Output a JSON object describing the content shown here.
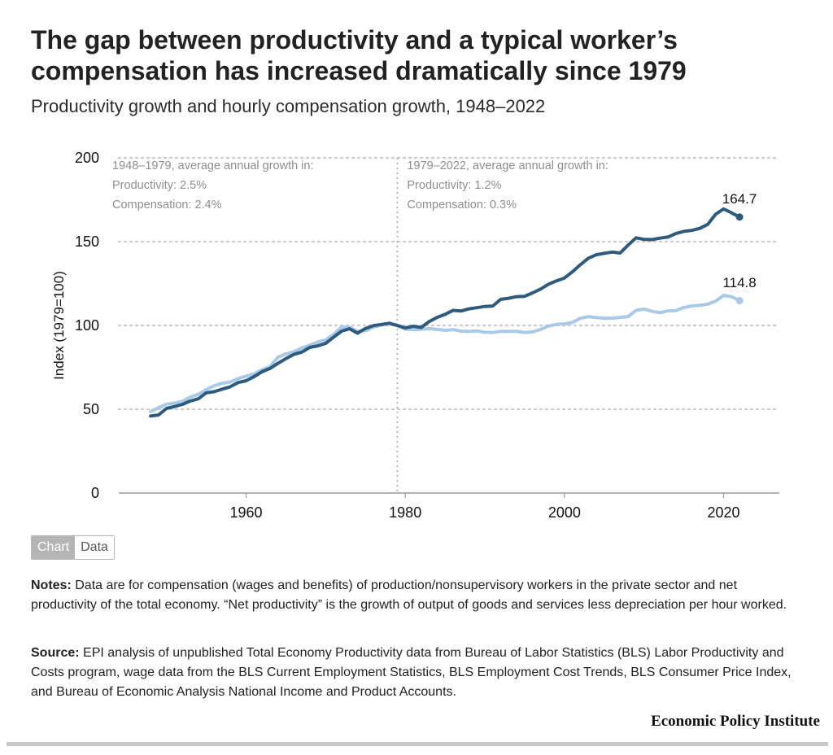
{
  "header": {
    "title": "The gap between productivity and a typical worker’s compensation has increased dramatically since 1979",
    "subtitle": "Productivity growth and hourly compensation growth, 1948–2022"
  },
  "chart_data": {
    "type": "line",
    "xlim": [
      1944,
      2027
    ],
    "ylim": [
      0,
      200
    ],
    "xticks": [
      1960,
      1980,
      2000,
      2020
    ],
    "yticks": [
      0,
      50,
      100,
      150,
      200
    ],
    "ylabel": "Index (1979=100)",
    "grid": "horizontal dotted",
    "divider_x": 1979,
    "annotations": [
      {
        "lines": [
          "1948–1979, average annual growth in:",
          "Productivity: 2.5%",
          "Compensation: 2.4%"
        ],
        "anchor_x": 1948
      },
      {
        "lines": [
          "1979–2022, average annual growth in:",
          "Productivity: 1.2%",
          "Compensation: 0.3%"
        ],
        "anchor_x": 1979
      }
    ],
    "series": [
      {
        "key": "productivity",
        "color": "#2e5a7d",
        "end_label": "164.7",
        "x": [
          1948,
          1949,
          1950,
          1951,
          1952,
          1953,
          1954,
          1955,
          1956,
          1957,
          1958,
          1959,
          1960,
          1961,
          1962,
          1963,
          1964,
          1965,
          1966,
          1967,
          1968,
          1969,
          1970,
          1971,
          1972,
          1973,
          1974,
          1975,
          1976,
          1977,
          1978,
          1979,
          1980,
          1981,
          1982,
          1983,
          1984,
          1985,
          1986,
          1987,
          1988,
          1989,
          1990,
          1991,
          1992,
          1993,
          1994,
          1995,
          1996,
          1997,
          1998,
          1999,
          2000,
          2001,
          2002,
          2003,
          2004,
          2005,
          2006,
          2007,
          2008,
          2009,
          2010,
          2011,
          2012,
          2013,
          2014,
          2015,
          2016,
          2017,
          2018,
          2019,
          2020,
          2021,
          2022
        ],
        "y": [
          45.9,
          46.6,
          50.5,
          51.6,
          52.9,
          54.9,
          56.2,
          59.8,
          60.5,
          62.0,
          63.4,
          65.9,
          67.0,
          69.4,
          72.4,
          74.3,
          77.4,
          80.2,
          82.7,
          84.1,
          86.9,
          87.8,
          89.3,
          93.0,
          96.6,
          98.0,
          95.4,
          98.2,
          99.9,
          100.6,
          101.3,
          100.0,
          98.5,
          99.5,
          98.8,
          102.3,
          104.8,
          106.6,
          109.0,
          108.6,
          109.9,
          110.6,
          111.3,
          111.6,
          115.6,
          116.2,
          117.2,
          117.4,
          119.4,
          121.7,
          124.6,
          126.6,
          128.3,
          132.0,
          136.2,
          140.1,
          142.2,
          143.0,
          143.8,
          143.2,
          147.9,
          152.3,
          151.3,
          151.2,
          152.1,
          152.7,
          154.8,
          156.1,
          156.7,
          157.9,
          160.3,
          166.3,
          169.5,
          167.2,
          164.7
        ]
      },
      {
        "key": "compensation",
        "color": "#a9c9e8",
        "end_label": "114.8",
        "x": [
          1948,
          1949,
          1950,
          1951,
          1952,
          1953,
          1954,
          1955,
          1956,
          1957,
          1958,
          1959,
          1960,
          1961,
          1962,
          1963,
          1964,
          1965,
          1966,
          1967,
          1968,
          1969,
          1970,
          1971,
          1972,
          1973,
          1974,
          1975,
          1976,
          1977,
          1978,
          1979,
          1980,
          1981,
          1982,
          1983,
          1984,
          1985,
          1986,
          1987,
          1988,
          1989,
          1990,
          1991,
          1992,
          1993,
          1994,
          1995,
          1996,
          1997,
          1998,
          1999,
          2000,
          2001,
          2002,
          2003,
          2004,
          2005,
          2006,
          2007,
          2008,
          2009,
          2010,
          2011,
          2012,
          2013,
          2014,
          2015,
          2016,
          2017,
          2018,
          2019,
          2020,
          2021,
          2022
        ],
        "y": [
          48.6,
          50.9,
          53.0,
          53.7,
          54.7,
          57.3,
          58.9,
          61.7,
          64.1,
          65.5,
          66.2,
          68.3,
          69.7,
          71.1,
          73.5,
          75.4,
          81.0,
          83.0,
          84.3,
          86.5,
          88.2,
          90.1,
          91.4,
          94.6,
          99.1,
          99.0,
          96.4,
          96.9,
          99.0,
          100.3,
          101.0,
          100.0,
          97.8,
          97.5,
          97.7,
          98.1,
          97.6,
          97.1,
          97.5,
          96.6,
          96.4,
          96.7,
          95.9,
          95.8,
          96.5,
          96.5,
          96.5,
          95.8,
          96.1,
          97.6,
          99.6,
          100.7,
          100.9,
          101.8,
          104.3,
          105.2,
          104.7,
          104.3,
          104.3,
          104.8,
          105.3,
          109.0,
          109.8,
          108.4,
          107.6,
          108.7,
          108.9,
          110.7,
          111.6,
          112.0,
          112.7,
          114.5,
          117.9,
          117.2,
          114.8
        ]
      }
    ]
  },
  "toggle": {
    "chart": "Chart",
    "data": "Data"
  },
  "notes": {
    "label": "Notes:",
    "text": "Data are for compensation (wages and benefits) of production/nonsupervisory workers in the private sector and net productivity of the total economy. “Net productivity” is the growth of output of goods and services less depreciation per hour worked."
  },
  "source": {
    "label": "Source:",
    "text": "EPI analysis of unpublished Total Economy Productivity data from Bureau of Labor Statistics (BLS) Labor Productivity and Costs program, wage data from the BLS Current Employment Statistics, BLS Employment Cost Trends, BLS Consumer Price Index, and Bureau of Economic Analysis National Income and Product Accounts."
  },
  "brand": "Economic Policy Institute"
}
